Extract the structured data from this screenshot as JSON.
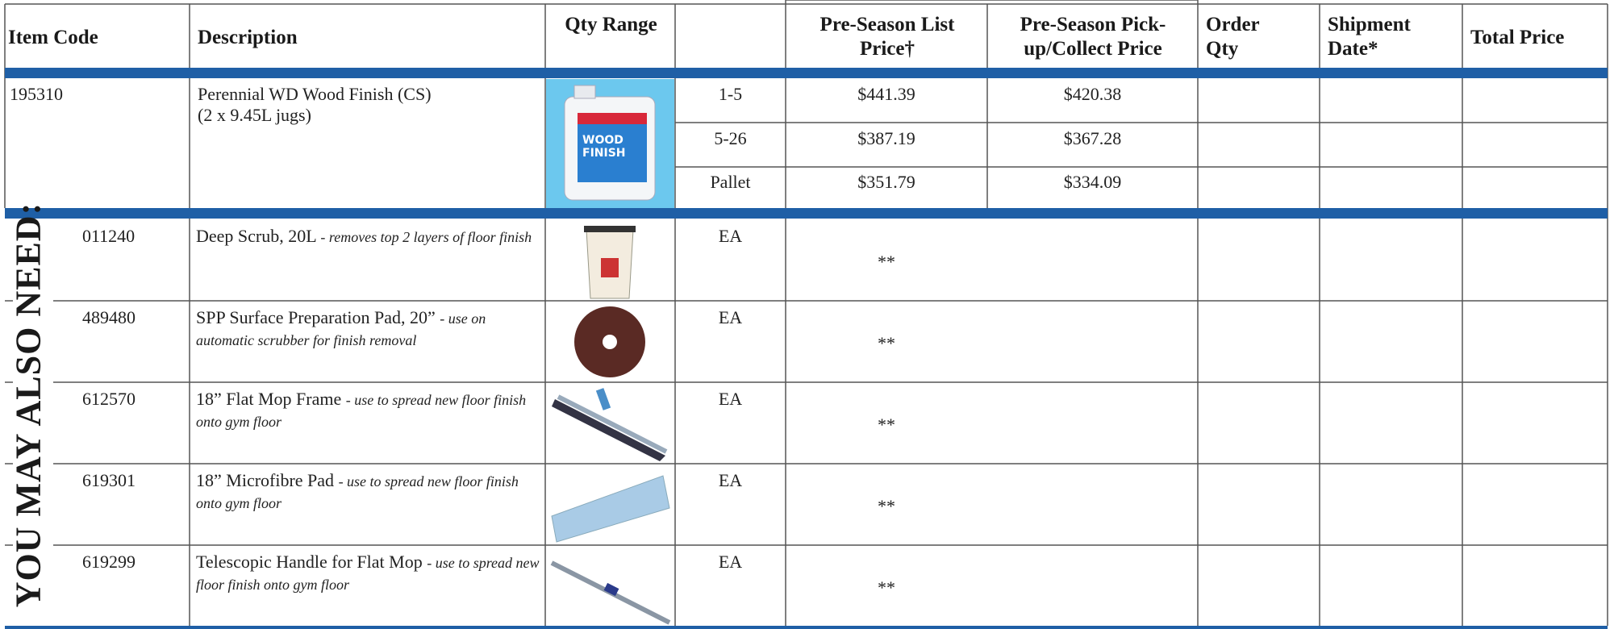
{
  "header": {
    "columns": [
      "Item Code",
      "Description",
      "Qty Range",
      "Pre-Season List Price†",
      "Pre-Season Pick-up/Collect Price",
      "Order Qty",
      "Shipment Date*",
      "Total Price"
    ]
  },
  "product": {
    "code": "195310",
    "name": "Perennial WD Wood Finish (CS)",
    "detail": "(2 x 9.45L jugs)",
    "tiers": [
      {
        "qty": "1-5",
        "list": "$441.39",
        "pickup": "$420.38"
      },
      {
        "qty": "5-26",
        "list": "$387.19",
        "pickup": "$367.28"
      },
      {
        "qty": "Pallet",
        "list": "$351.79",
        "pickup": "$334.09"
      }
    ]
  },
  "side_label": "YOU MAY ALSO NEED:",
  "accessories": [
    {
      "code": "011240",
      "name": "Deep Scrub, 20L",
      "note": "- removes top 2 layers of floor finish",
      "unit": "EA",
      "price": "**"
    },
    {
      "code": "489480",
      "name": "SPP Surface Preparation Pad, 20”",
      "note": "- use on automatic scrubber for finish removal",
      "unit": "EA",
      "price": "**"
    },
    {
      "code": "612570",
      "name": "18” Flat Mop Frame",
      "note": "- use to spread new floor finish onto gym floor",
      "unit": "EA",
      "price": "**"
    },
    {
      "code": "619301",
      "name": "18” Microfibre Pad",
      "note": "- use to spread new floor finish onto gym floor",
      "unit": "EA",
      "price": "**"
    },
    {
      "code": "619299",
      "name": "Telescopic Handle for Flat Mop",
      "note": "- use to spread new floor finish onto gym floor",
      "unit": "EA",
      "price": "**"
    }
  ]
}
